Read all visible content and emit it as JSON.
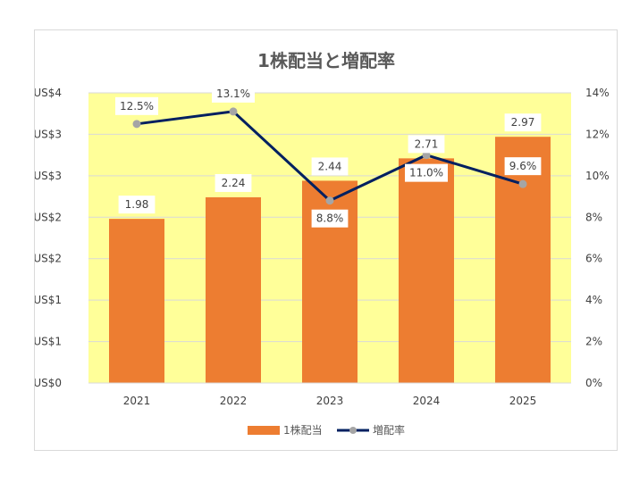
{
  "chart_data": {
    "type": "bar",
    "title": "1株配当と増配率",
    "categories": [
      "2021",
      "2022",
      "2023",
      "2024",
      "2025"
    ],
    "series": [
      {
        "name": "1株配当",
        "type": "bar",
        "axis": "left",
        "values": [
          1.98,
          2.24,
          2.44,
          2.71,
          2.97
        ],
        "labels": [
          "1.98",
          "2.24",
          "2.44",
          "2.71",
          "2.97"
        ],
        "color": "#ed7d31"
      },
      {
        "name": "増配率",
        "type": "line",
        "axis": "right",
        "values": [
          12.5,
          13.1,
          8.8,
          11.0,
          9.6
        ],
        "labels": [
          "12.5%",
          "13.1%",
          "8.8%",
          "11.0%",
          "9.6%"
        ],
        "color": "#002060",
        "marker_color": "#a5a5a5"
      }
    ],
    "y_left": {
      "ylim": [
        0,
        3.5
      ],
      "ticks": [
        0,
        0.5,
        1,
        1.5,
        2,
        2.5,
        3,
        3.5
      ],
      "tick_labels": [
        "US$0",
        "US$1",
        "US$1",
        "US$2",
        "US$2",
        "US$3",
        "US$3",
        "US$4"
      ]
    },
    "y_right": {
      "ylim": [
        0,
        14
      ],
      "ticks": [
        0,
        2,
        4,
        6,
        8,
        10,
        12,
        14
      ],
      "tick_labels": [
        "0%",
        "2%",
        "4%",
        "6%",
        "8%",
        "10%",
        "12%",
        "14%"
      ]
    },
    "grid": true,
    "legend_position": "bottom",
    "plot_background": "#ffff99"
  }
}
